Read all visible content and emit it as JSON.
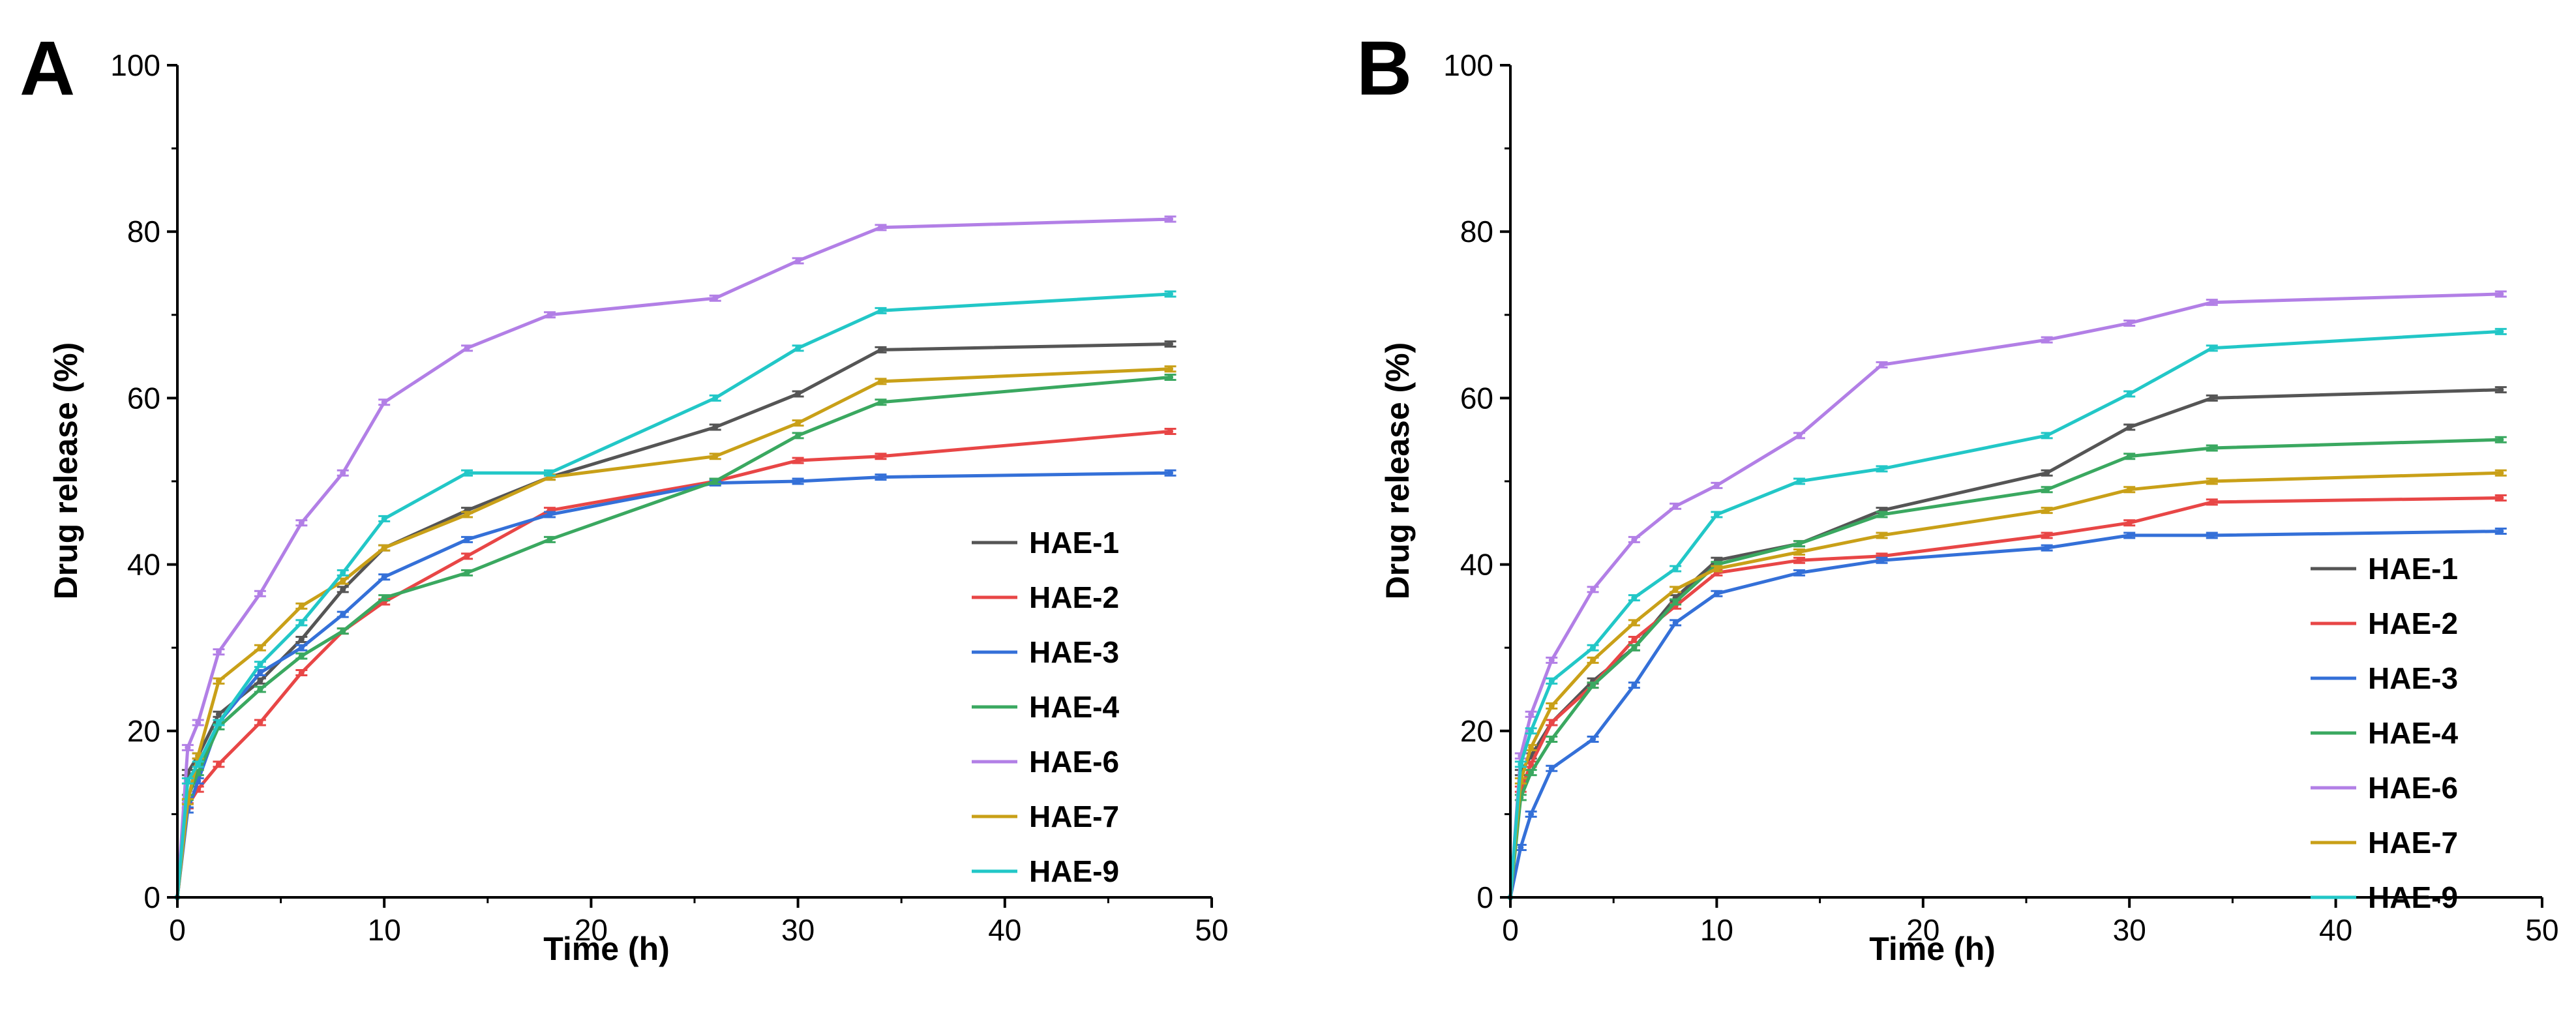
{
  "chart_data": [
    {
      "type": "line",
      "panel_label": "A",
      "xlabel": "Time (h)",
      "ylabel": "Drug release (%)",
      "xlim": [
        0,
        50
      ],
      "ylim": [
        0,
        100
      ],
      "xticks": [
        0,
        10,
        20,
        30,
        40,
        50
      ],
      "yticks": [
        0,
        20,
        40,
        60,
        80,
        100
      ],
      "legend_position": "bottom-right",
      "x": [
        0,
        0.5,
        1,
        2,
        4,
        6,
        8,
        10,
        14,
        18,
        26,
        30,
        34,
        48
      ],
      "series": [
        {
          "name": "HAE-1",
          "color": "#555555",
          "values": [
            0,
            15,
            17,
            22,
            26,
            31,
            37,
            42,
            46.5,
            50.5,
            56.5,
            60.5,
            65.8,
            66.5
          ]
        },
        {
          "name": "HAE-2",
          "color": "#e84646",
          "values": [
            0,
            11,
            13,
            16,
            21,
            27,
            32,
            35.5,
            41,
            46.5,
            50,
            52.5,
            53,
            56
          ]
        },
        {
          "name": "HAE-3",
          "color": "#3470d8",
          "values": [
            0,
            10.5,
            14,
            21,
            27,
            30,
            34,
            38.5,
            43,
            46,
            49.8,
            50,
            50.5,
            51
          ]
        },
        {
          "name": "HAE-4",
          "color": "#3aa860",
          "values": [
            0,
            12,
            15,
            20.5,
            25,
            29,
            32,
            36,
            39,
            43,
            50,
            55.5,
            59.5,
            62.5
          ]
        },
        {
          "name": "HAE-6",
          "color": "#b27fe6",
          "values": [
            0,
            18,
            21,
            29.5,
            36.5,
            45,
            51,
            59.5,
            66,
            70,
            72,
            76.5,
            80.5,
            81.5
          ]
        },
        {
          "name": "HAE-7",
          "color": "#c9a018",
          "values": [
            0,
            11.5,
            17,
            26,
            30,
            35,
            38,
            42,
            46,
            50.5,
            53,
            57,
            62,
            63.5
          ]
        },
        {
          "name": "HAE-9",
          "color": "#22c7c7",
          "values": [
            0,
            14,
            16,
            21,
            28,
            33,
            39,
            45.5,
            51,
            51,
            60,
            66,
            70.5,
            72.5
          ]
        }
      ]
    },
    {
      "type": "line",
      "panel_label": "B",
      "xlabel": "Time (h)",
      "ylabel": "Drug release (%)",
      "xlim": [
        0,
        50
      ],
      "ylim": [
        0,
        100
      ],
      "xticks": [
        0,
        10,
        20,
        30,
        40,
        50
      ],
      "yticks": [
        0,
        20,
        40,
        60,
        80,
        100
      ],
      "legend_position": "bottom-right",
      "x": [
        0,
        0.5,
        1,
        2,
        4,
        6,
        8,
        10,
        14,
        18,
        26,
        30,
        34,
        48
      ],
      "series": [
        {
          "name": "HAE-1",
          "color": "#555555",
          "values": [
            0,
            15,
            17,
            21,
            26,
            30,
            36,
            40.5,
            42.5,
            46.5,
            51,
            56.5,
            60,
            61
          ]
        },
        {
          "name": "HAE-2",
          "color": "#e84646",
          "values": [
            0,
            13,
            16,
            21,
            25.5,
            31,
            35,
            39,
            40.5,
            41,
            43.5,
            45,
            47.5,
            48
          ]
        },
        {
          "name": "HAE-3",
          "color": "#3470d8",
          "values": [
            0,
            6,
            10,
            15.5,
            19,
            25.5,
            33,
            36.5,
            39,
            40.5,
            42,
            43.5,
            43.5,
            44
          ]
        },
        {
          "name": "HAE-4",
          "color": "#3aa860",
          "values": [
            0,
            12,
            15,
            19,
            25.5,
            30,
            35.5,
            40,
            42.5,
            46,
            49,
            53,
            54,
            55
          ]
        },
        {
          "name": "HAE-6",
          "color": "#b27fe6",
          "values": [
            0,
            17,
            22,
            28.5,
            37,
            43,
            47,
            49.5,
            55.5,
            64,
            67,
            69,
            71.5,
            72.5
          ]
        },
        {
          "name": "HAE-7",
          "color": "#c9a018",
          "values": [
            0,
            14,
            18,
            23,
            28.5,
            33,
            37,
            39.5,
            41.5,
            43.5,
            46.5,
            49,
            50,
            51
          ]
        },
        {
          "name": "HAE-9",
          "color": "#22c7c7",
          "values": [
            0,
            16,
            20,
            26,
            30,
            36,
            39.5,
            46,
            50,
            51.5,
            55.5,
            60.5,
            66,
            68
          ]
        }
      ]
    }
  ]
}
